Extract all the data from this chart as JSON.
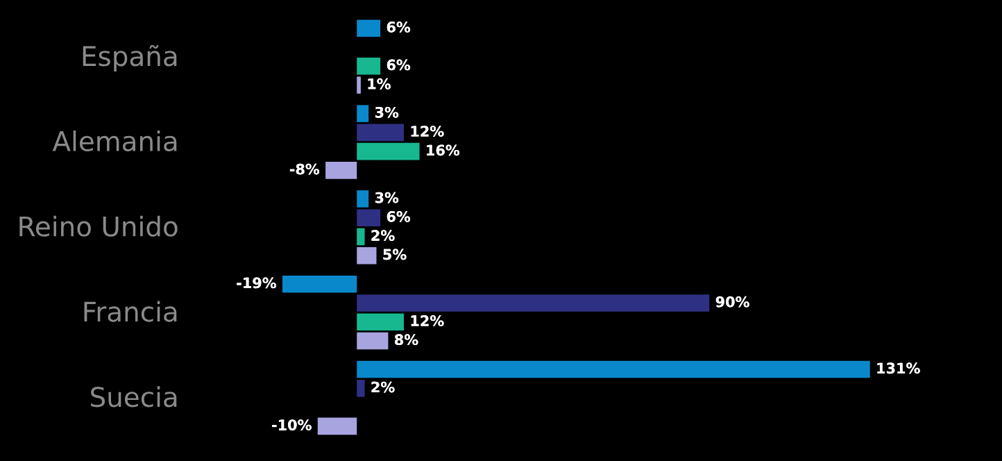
{
  "chart_data": {
    "type": "bar",
    "orientation": "horizontal",
    "categories": [
      "España",
      "Alemania",
      "Reino Unido",
      "Francia",
      "Suecia"
    ],
    "series": [
      {
        "color": "#0a88cc",
        "values": [
          6,
          3,
          3,
          -19,
          131
        ],
        "value_labels": [
          "6%",
          "3%",
          "3%",
          "-19%",
          "131%"
        ]
      },
      {
        "color": "#2e3183",
        "values": [
          null,
          12,
          6,
          90,
          2
        ],
        "value_labels": [
          null,
          "12%",
          "6%",
          "90%",
          "2%"
        ]
      },
      {
        "color": "#17b890",
        "values": [
          6,
          16,
          2,
          12,
          null
        ],
        "value_labels": [
          "6%",
          "16%",
          "2%",
          "12%",
          null
        ]
      },
      {
        "color": "#a8a4e0",
        "values": [
          1,
          -8,
          5,
          8,
          -10
        ],
        "value_labels": [
          "1%",
          "-8%",
          "5%",
          "8%",
          "-10%"
        ]
      }
    ]
  }
}
